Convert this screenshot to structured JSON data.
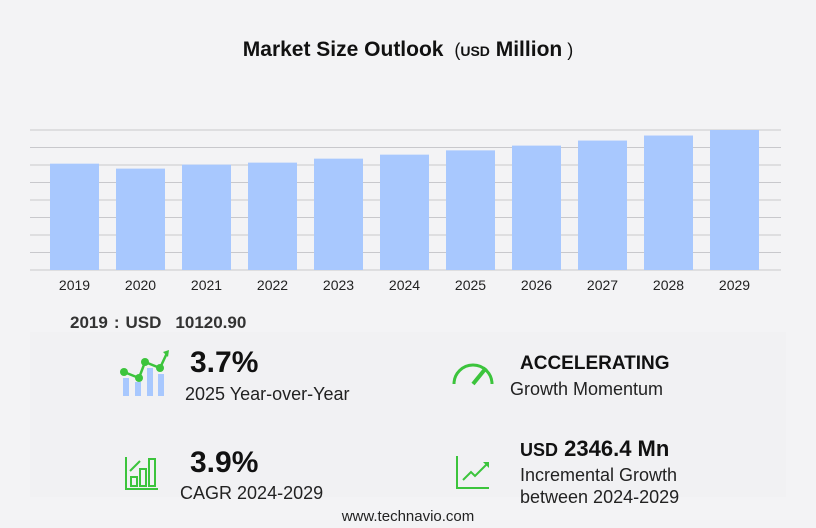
{
  "chart_data": {
    "type": "bar",
    "title": "Market Size Outlook",
    "title_unit_prefix": "USD",
    "title_unit": "Million",
    "categories": [
      "2019",
      "2020",
      "2021",
      "2022",
      "2023",
      "2024",
      "2025",
      "2026",
      "2027",
      "2028",
      "2029"
    ],
    "values": [
      10120.9,
      9650,
      10030,
      10220,
      10600,
      10980,
      11386,
      11840,
      12320,
      12800,
      13326
    ],
    "ylim": [
      0,
      13326
    ],
    "grid": true,
    "bar_color": "#a8c8fe"
  },
  "base_year": {
    "year": "2019",
    "sep": ":",
    "currency": "USD",
    "value": "10120.90"
  },
  "stats": {
    "yoy": {
      "value": "3.7%",
      "label": "2025 Year-over-Year"
    },
    "momentum": {
      "value": "ACCELERATING",
      "label": "Growth Momentum"
    },
    "cagr": {
      "value": "3.9%",
      "label_prefix": "CAGR",
      "label": "2024-2029"
    },
    "incremental": {
      "currency": "USD",
      "value": "2346.4 Mn",
      "label_line1": "Incremental Growth",
      "label_line2": "between 2024-2029"
    }
  },
  "accent_color": "#3cc43c",
  "footer": "www.technavio.com"
}
